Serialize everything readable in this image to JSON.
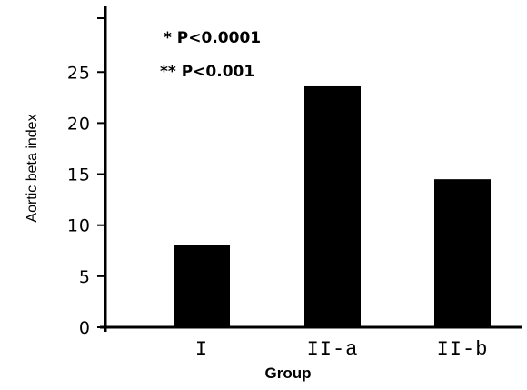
{
  "chart_data": {
    "type": "bar",
    "categories": [
      "I",
      "II-a",
      "II-b"
    ],
    "category_labels": [
      "I",
      "II-a",
      "II-b"
    ],
    "values": [
      8.1,
      23.6,
      14.5
    ],
    "title": "",
    "xlabel": "Group",
    "ylabel": "Aortic beta index",
    "ylim": [
      0,
      30
    ],
    "yticks": [
      0,
      5,
      10,
      15,
      20,
      25
    ],
    "ytick_labels": [
      "0",
      "5",
      "10",
      "15",
      "20",
      "25"
    ],
    "annotations": [
      "* P<0.0001",
      "** P<0.001"
    ],
    "grid": false,
    "bar_color": "#000000"
  }
}
